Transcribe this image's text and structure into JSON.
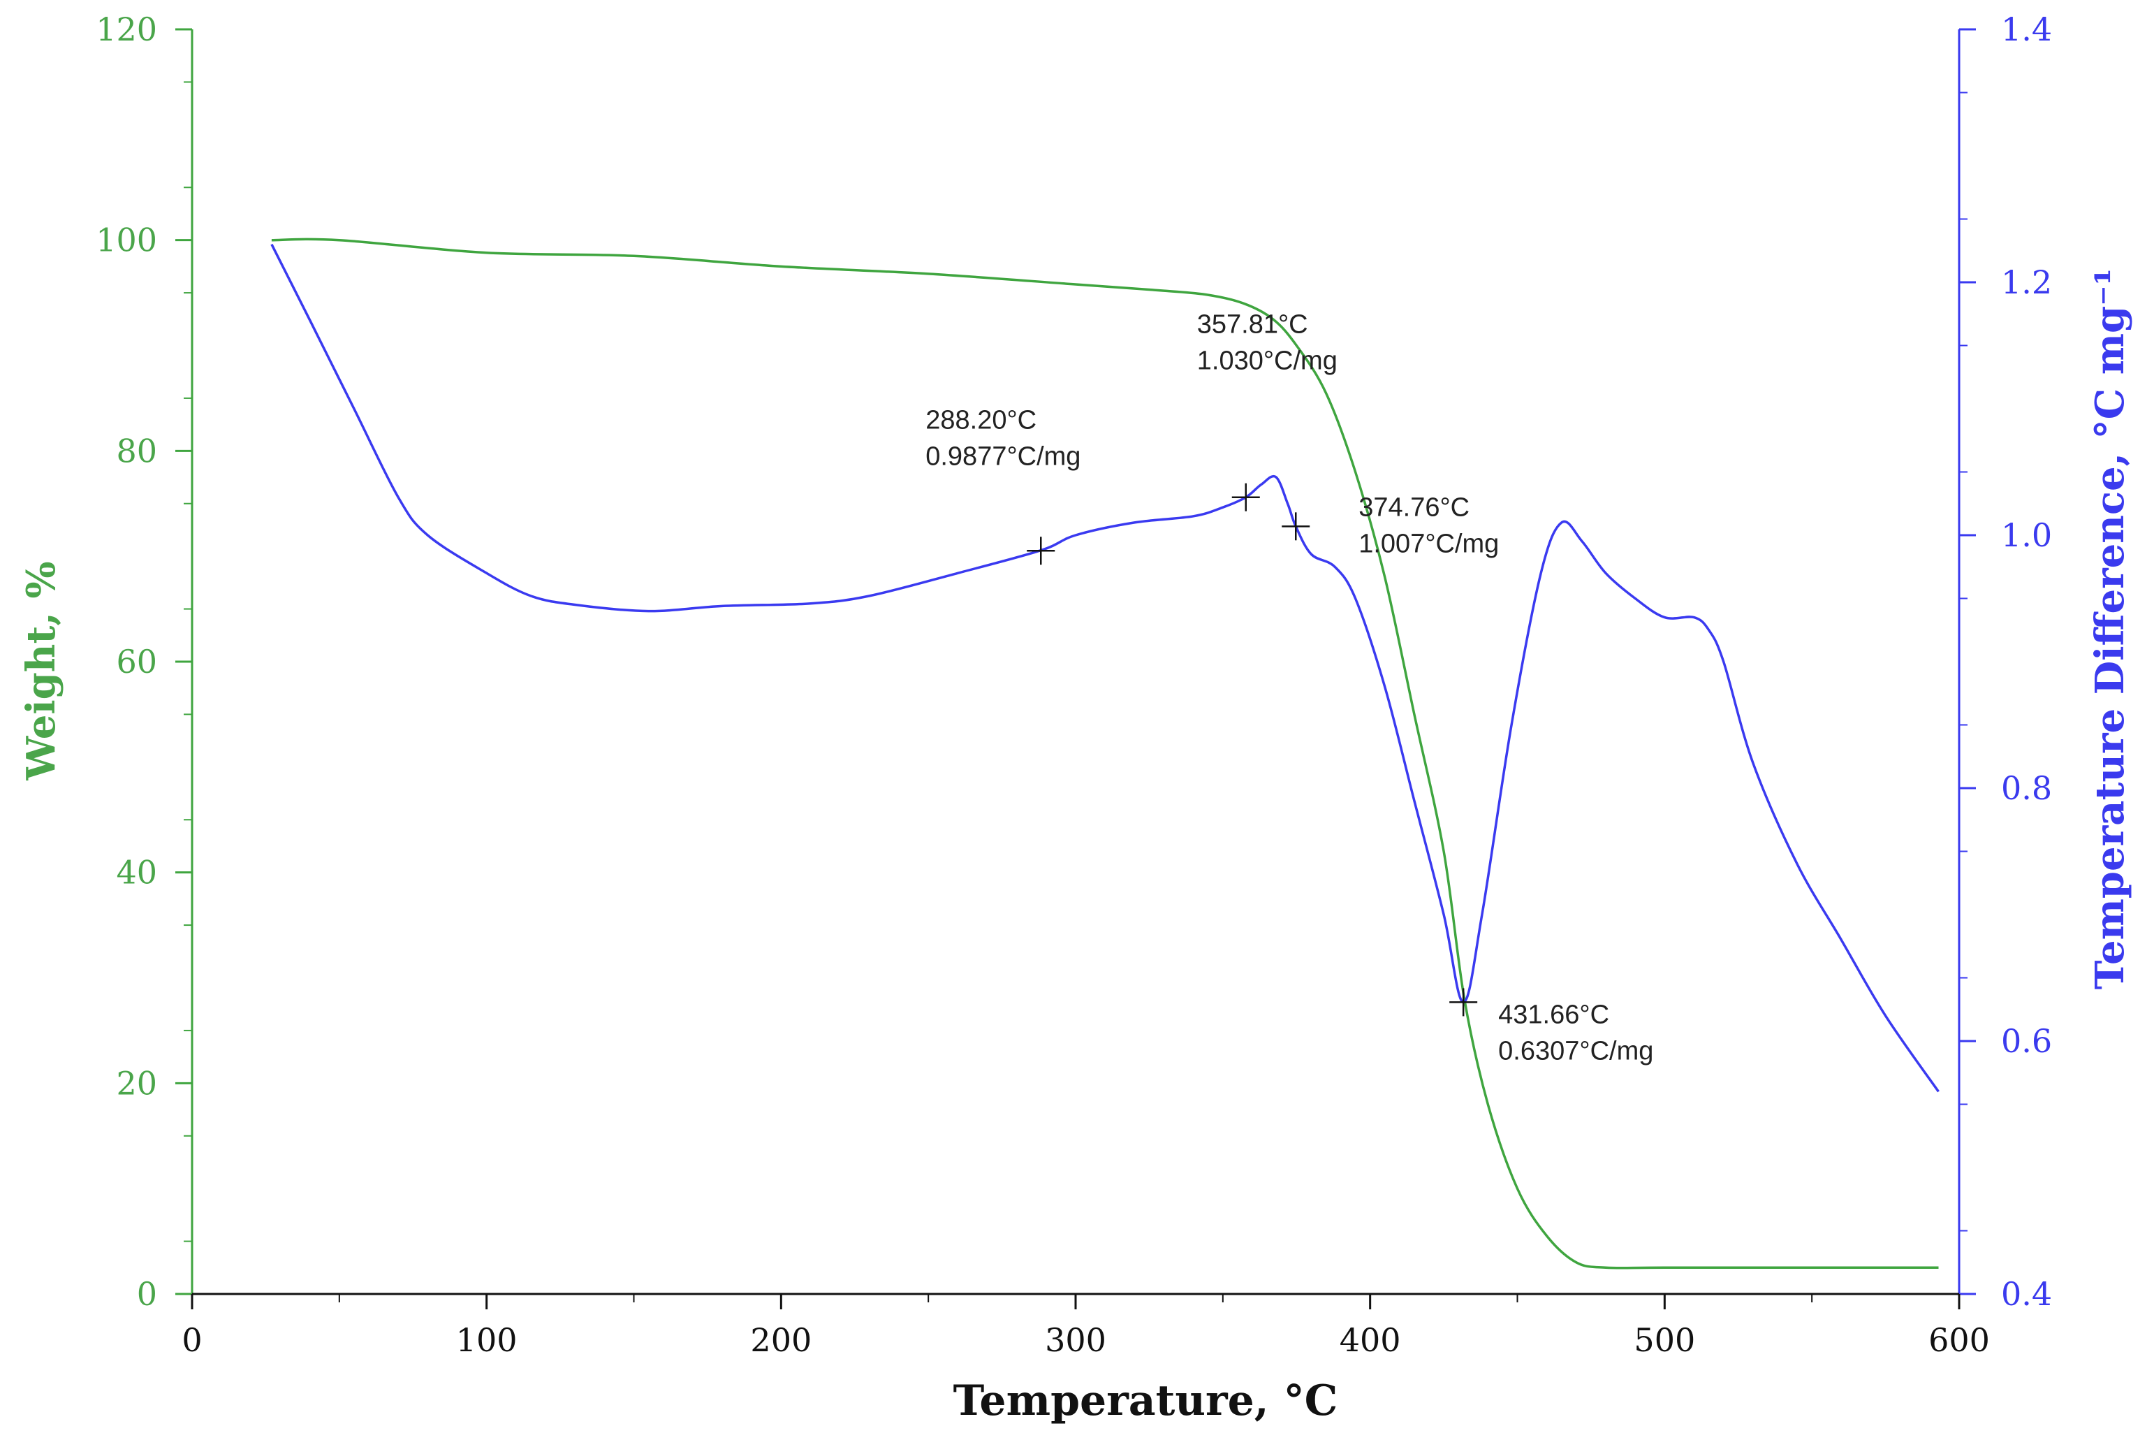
{
  "chart_data": {
    "type": "line",
    "xlabel": "Temperature, °C",
    "ylabel_left": "Weight, %",
    "ylabel_right": "Temperature Difference, °C mg⁻¹",
    "xlim": [
      0,
      600
    ],
    "ylim_left": [
      0,
      120
    ],
    "ylim_right": [
      0.4,
      1.4
    ],
    "x_ticks": [
      "0",
      "100",
      "200",
      "300",
      "400",
      "500",
      "600"
    ],
    "left_ticks": [
      "0",
      "20",
      "40",
      "60",
      "80",
      "100",
      "120"
    ],
    "right_ticks": [
      "0.4",
      "0.6",
      "0.8",
      "1.0",
      "1.2",
      "1.4"
    ],
    "colors": {
      "weight": "#3fa53f",
      "dta": "#3a3af0",
      "marker": "#111111"
    },
    "series": [
      {
        "name": "Weight",
        "axis": "left",
        "x": [
          27,
          50,
          100,
          150,
          200,
          250,
          300,
          330,
          345,
          357,
          367,
          375,
          385,
          395,
          405,
          415,
          425,
          432,
          440,
          450,
          460,
          470,
          480,
          500,
          550,
          593
        ],
        "y": [
          100,
          100,
          98.8,
          98.5,
          97.5,
          96.8,
          95.8,
          95.2,
          94.8,
          94.0,
          92.5,
          90.0,
          85.5,
          78.0,
          68.0,
          55.0,
          42.0,
          28.0,
          18.0,
          10.0,
          5.5,
          3.0,
          2.5,
          2.5,
          2.5,
          2.5
        ]
      },
      {
        "name": "Temperature Difference",
        "axis": "right",
        "x": [
          27,
          40,
          55,
          70,
          80,
          100,
          115,
          130,
          155,
          180,
          210,
          230,
          260,
          288.2,
          300,
          320,
          340,
          350,
          357.81,
          363,
          368,
          372,
          374.76,
          380,
          388,
          395,
          405,
          415,
          425,
          431.66,
          438,
          448,
          458,
          465,
          472,
          480,
          490,
          500,
          510,
          515,
          520,
          530,
          545,
          560,
          575,
          593
        ],
        "y": [
          1.23,
          1.17,
          1.1,
          1.03,
          1.0,
          0.97,
          0.952,
          0.945,
          0.94,
          0.944,
          0.946,
          0.952,
          0.97,
          0.988,
          1.0,
          1.01,
          1.015,
          1.022,
          1.03,
          1.04,
          1.046,
          1.025,
          1.007,
          0.985,
          0.975,
          0.95,
          0.88,
          0.79,
          0.7,
          0.6307,
          0.7,
          0.85,
          0.97,
          1.01,
          0.995,
          0.97,
          0.95,
          0.935,
          0.935,
          0.925,
          0.9,
          0.82,
          0.74,
          0.68,
          0.62,
          0.56
        ]
      }
    ],
    "annotations": [
      {
        "x": 288.2,
        "y_right": 0.9877,
        "line1": "288.20°C",
        "line2": "0.9877°C/mg"
      },
      {
        "x": 357.81,
        "y_right": 1.03,
        "line1": "357.81°C",
        "line2": "1.030°C/mg"
      },
      {
        "x": 374.76,
        "y_right": 1.007,
        "line1": "374.76°C",
        "line2": "1.007°C/mg"
      },
      {
        "x": 431.66,
        "y_right": 0.6307,
        "line1": "431.66°C",
        "line2": "0.6307°C/mg"
      }
    ]
  }
}
